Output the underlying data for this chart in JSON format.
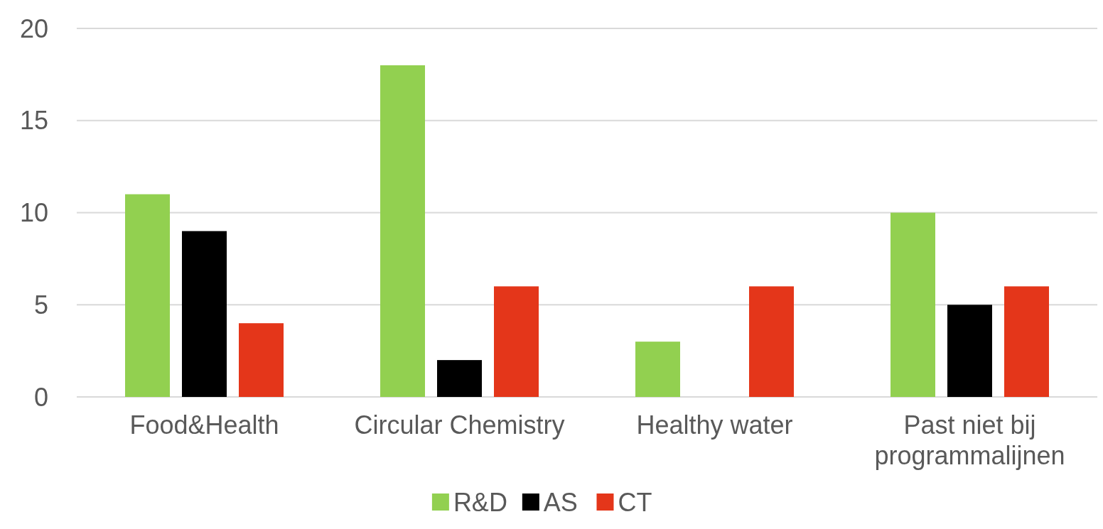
{
  "chart_data": {
    "type": "bar",
    "categories": [
      "Food&Health",
      "Circular Chemistry",
      "Healthy water",
      "Past niet bij programmalijnen"
    ],
    "series": [
      {
        "name": "R&D",
        "color": "#92d050",
        "values": [
          11,
          18,
          3,
          10
        ]
      },
      {
        "name": "AS",
        "color": "#000000",
        "values": [
          9,
          2,
          0,
          5
        ]
      },
      {
        "name": "CT",
        "color": "#e4361a",
        "values": [
          4,
          6,
          6,
          6
        ]
      }
    ],
    "ylim": [
      0,
      20
    ],
    "yticks": [
      0,
      5,
      10,
      15,
      20
    ],
    "grid": "y",
    "legend": "bottom"
  }
}
